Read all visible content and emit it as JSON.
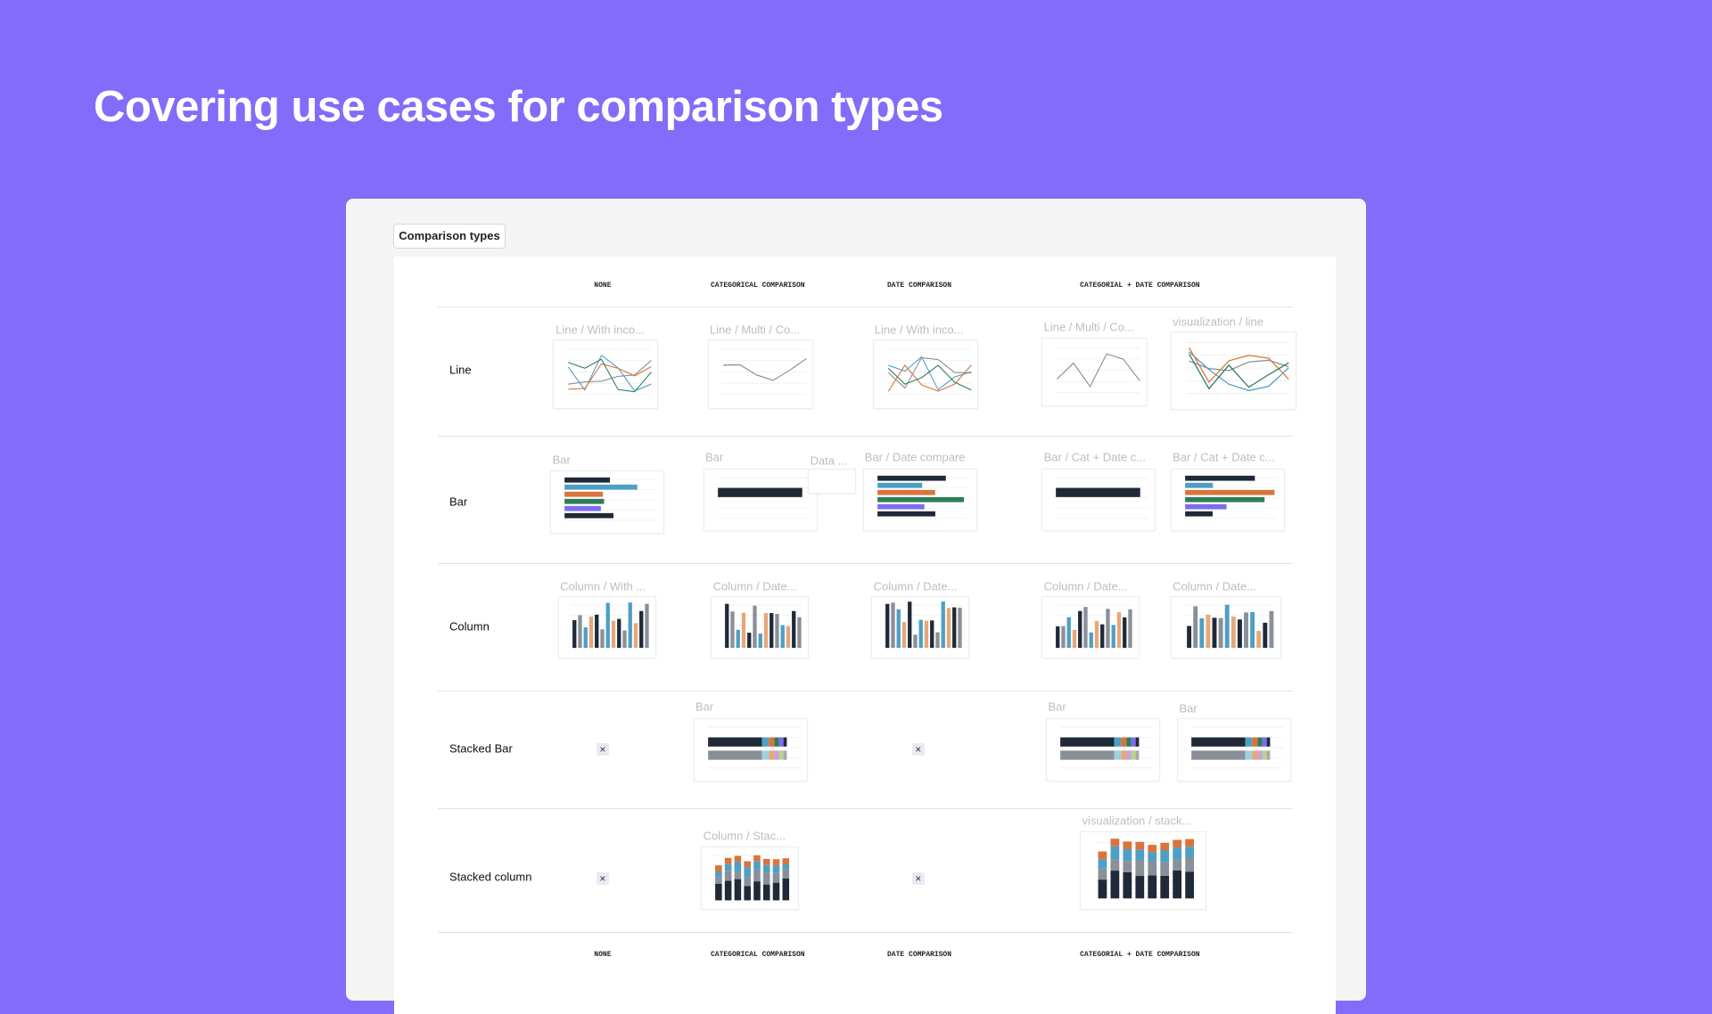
{
  "header": {
    "title": "Covering use cases for comparison types"
  },
  "panel": {
    "tab": "Comparison types",
    "columns": [
      "NONE",
      "CATEGORICAL COMPARISON",
      "DATE COMPARISON",
      "CATEGORIAL + DATE COMPARISON"
    ],
    "rows": [
      {
        "label": "Line",
        "items": [
          "Line / With inco...",
          "Line / Multi / Co...",
          "Line / With inco...",
          "Line / Multi / Co...",
          "visualization / line"
        ]
      },
      {
        "label": "Bar",
        "items": [
          "Bar",
          "Bar",
          "Data ...",
          "Bar / Date compare",
          "Bar / Cat + Date c...",
          "Bar / Cat + Date c..."
        ]
      },
      {
        "label": "Column",
        "items": [
          "Column / With ...",
          "Column / Date...",
          "Column / Date...",
          "Column / Date...",
          "Column / Date..."
        ]
      },
      {
        "label": "Stacked Bar",
        "items": [
          null,
          "Bar",
          null,
          "Bar",
          "Bar"
        ]
      },
      {
        "label": "Stacked column",
        "items": [
          null,
          "Column / Stac...",
          null,
          "visualization / stack..."
        ]
      }
    ],
    "footer_columns": [
      "NONE",
      "CATEGORICAL COMPARISON",
      "DATE COMPARISON",
      "CATEGORIAL + DATE COMPARISON"
    ]
  }
}
